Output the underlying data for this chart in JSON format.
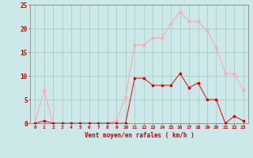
{
  "hours": [
    0,
    1,
    2,
    3,
    4,
    5,
    6,
    7,
    8,
    9,
    10,
    11,
    12,
    13,
    14,
    15,
    16,
    17,
    18,
    19,
    20,
    21,
    22,
    23
  ],
  "wind_avg": [
    0,
    0.5,
    0,
    0,
    0,
    0,
    0,
    0,
    0,
    0,
    0,
    9.5,
    9.5,
    8,
    8,
    8,
    10.5,
    7.5,
    8.5,
    5,
    5,
    0,
    1.5,
    0.5
  ],
  "wind_gust": [
    0,
    7,
    0,
    0,
    0,
    0,
    0,
    0,
    0,
    0.5,
    5.5,
    16.5,
    16.5,
    18,
    18,
    21,
    23.5,
    21.5,
    21.5,
    19.5,
    16,
    10.5,
    10.5,
    7
  ],
  "bg_color": "#cce8e8",
  "grid_color": "#aacccc",
  "line_avg_color": "#dd2222",
  "line_gust_color": "#ffaaaa",
  "marker_avg_color": "#dd0000",
  "marker_gust_color": "#ffaaaa",
  "xlabel": "Vent moyen/en rafales ( km/h )",
  "xlabel_color": "#cc0000",
  "tick_color": "#cc0000",
  "ylim": [
    0,
    25
  ],
  "yticks": [
    0,
    5,
    10,
    15,
    20,
    25
  ]
}
